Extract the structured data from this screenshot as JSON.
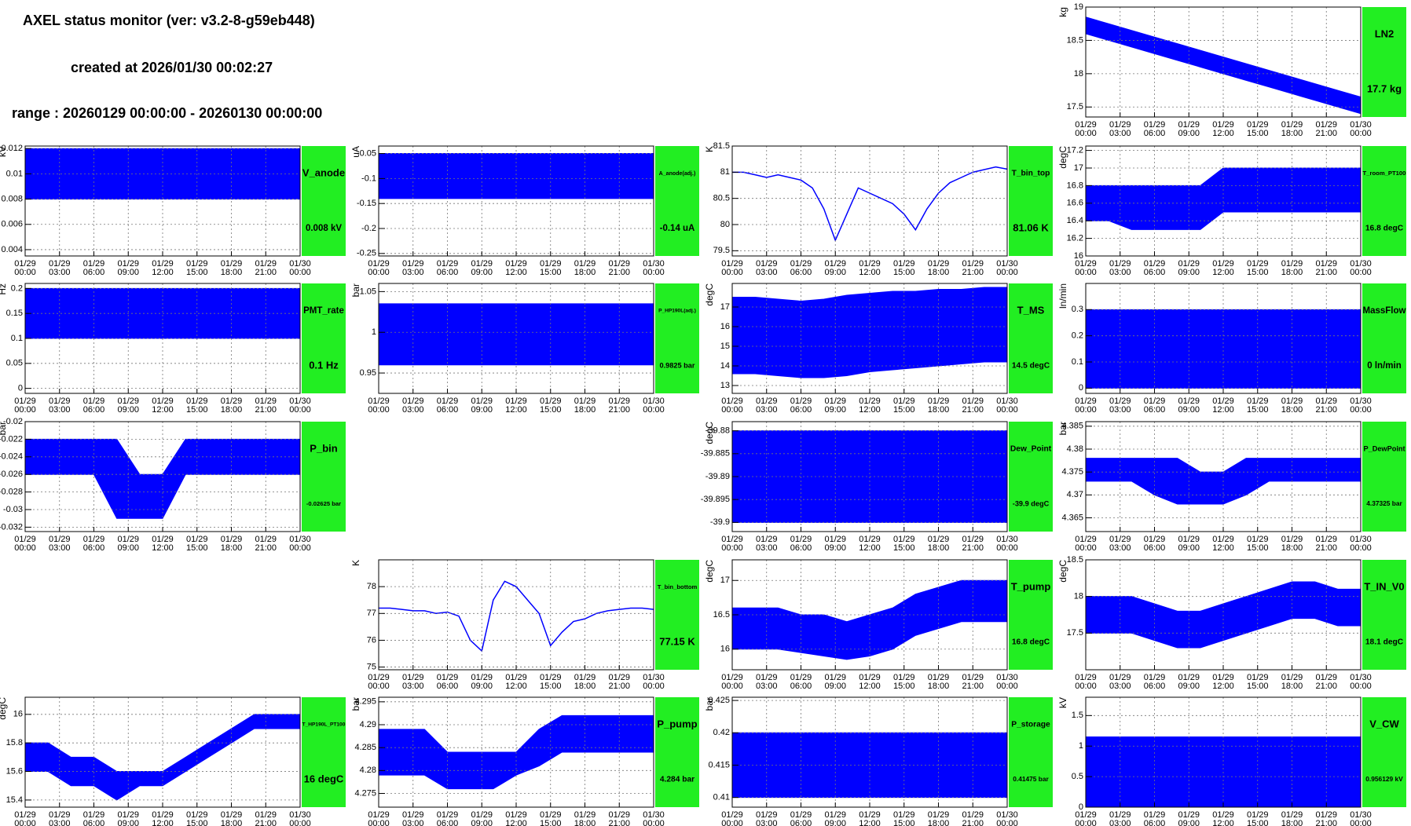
{
  "header": {
    "title": "AXEL status monitor (ver: v3.2-8-g59eb448)",
    "created": "created at 2026/01/30 00:02:27",
    "range": "range : 20260129 00:00:00 - 20260130 00:00:00"
  },
  "time_axis": {
    "xlim": [
      0,
      24
    ],
    "xticks": [
      {
        "value": 0,
        "label": [
          "01/29",
          "00:00"
        ]
      },
      {
        "value": 3,
        "label": [
          "01/29",
          "03:00"
        ]
      },
      {
        "value": 6,
        "label": [
          "01/29",
          "06:00"
        ]
      },
      {
        "value": 9,
        "label": [
          "01/29",
          "09:00"
        ]
      },
      {
        "value": 12,
        "label": [
          "01/29",
          "12:00"
        ]
      },
      {
        "value": 15,
        "label": [
          "01/29",
          "15:00"
        ]
      },
      {
        "value": 18,
        "label": [
          "01/29",
          "18:00"
        ]
      },
      {
        "value": 21,
        "label": [
          "01/29",
          "21:00"
        ]
      },
      {
        "value": 24,
        "label": [
          "01/30",
          "00:00"
        ]
      }
    ]
  },
  "chart_data": [
    {
      "type": "band",
      "name": "LN2",
      "value_label": "17.7 kg",
      "y_label": "kg",
      "color": "#0000ff",
      "grid": true,
      "ylim": [
        17.35,
        19.0
      ],
      "yticks": [
        17.5,
        18,
        18.5,
        19
      ],
      "x": [
        0,
        2,
        4,
        6,
        8,
        10,
        12,
        14,
        16,
        18,
        20,
        22,
        24
      ],
      "high": [
        18.85,
        18.75,
        18.65,
        18.55,
        18.45,
        18.35,
        18.25,
        18.15,
        18.05,
        17.95,
        17.85,
        17.75,
        17.65
      ],
      "low": [
        18.6,
        18.5,
        18.4,
        18.3,
        18.2,
        18.1,
        18.0,
        17.9,
        17.8,
        17.7,
        17.6,
        17.5,
        17.4
      ]
    },
    {
      "type": "band",
      "name": "V_anode",
      "value_label": "0.008 kV",
      "y_label": "kV",
      "color": "#0000ff",
      "grid": true,
      "ylim": [
        0.0035,
        0.0122
      ],
      "yticks": [
        0.004,
        0.006,
        0.008,
        0.01,
        0.012
      ],
      "x": [
        0,
        2,
        4,
        6,
        8,
        10,
        12,
        14,
        16,
        18,
        20,
        22,
        24
      ],
      "high": [
        0.012,
        0.012,
        0.012,
        0.012,
        0.012,
        0.012,
        0.012,
        0.012,
        0.012,
        0.012,
        0.012,
        0.012,
        0.012
      ],
      "low": [
        0.008,
        0.008,
        0.008,
        0.008,
        0.008,
        0.008,
        0.008,
        0.008,
        0.008,
        0.008,
        0.008,
        0.008,
        0.008
      ]
    },
    {
      "type": "band",
      "name": "A_anode(adj.)",
      "value_label": "-0.14 uA",
      "y_label": "uA",
      "color": "#0000ff",
      "grid": true,
      "ylim": [
        -0.255,
        -0.035
      ],
      "yticks": [
        -0.25,
        -0.2,
        -0.15,
        -0.1,
        -0.05
      ],
      "x": [
        0,
        2,
        4,
        6,
        8,
        10,
        12,
        14,
        16,
        18,
        20,
        22,
        24
      ],
      "high": [
        -0.05,
        -0.05,
        -0.05,
        -0.05,
        -0.05,
        -0.05,
        -0.05,
        -0.05,
        -0.05,
        -0.05,
        -0.05,
        -0.05,
        -0.05
      ],
      "low": [
        -0.14,
        -0.14,
        -0.14,
        -0.14,
        -0.14,
        -0.14,
        -0.14,
        -0.14,
        -0.14,
        -0.14,
        -0.14,
        -0.14,
        -0.14
      ]
    },
    {
      "type": "line",
      "name": "T_bin_top",
      "value_label": "81.06 K",
      "y_label": "K",
      "color": "#0000ff",
      "grid": true,
      "ylim": [
        79.4,
        81.5
      ],
      "yticks": [
        79.5,
        80,
        80.5,
        81,
        81.5
      ],
      "x": [
        0,
        1,
        2,
        3,
        4,
        5,
        6,
        7,
        8,
        9,
        10,
        11,
        12,
        13,
        14,
        15,
        16,
        17,
        18,
        19,
        20,
        21,
        22,
        23,
        24
      ],
      "values": [
        81.0,
        81.0,
        80.95,
        80.9,
        80.95,
        80.9,
        80.85,
        80.7,
        80.3,
        79.7,
        80.2,
        80.7,
        80.6,
        80.5,
        80.4,
        80.2,
        79.9,
        80.3,
        80.6,
        80.8,
        80.9,
        81.0,
        81.05,
        81.1,
        81.06
      ]
    },
    {
      "type": "band",
      "name": "T_room_PT100",
      "value_label": "16.8 degC",
      "y_label": "degC",
      "color": "#0000ff",
      "grid": true,
      "ylim": [
        16,
        17.25
      ],
      "yticks": [
        16,
        16.2,
        16.4,
        16.6,
        16.8,
        17,
        17.2
      ],
      "x": [
        0,
        2,
        4,
        6,
        8,
        10,
        12,
        14,
        16,
        18,
        20,
        22,
        24
      ],
      "high": [
        16.8,
        16.8,
        16.8,
        16.8,
        16.8,
        16.8,
        17.0,
        17.0,
        17.0,
        17.0,
        17.0,
        17.0,
        17.0
      ],
      "low": [
        16.4,
        16.4,
        16.3,
        16.3,
        16.3,
        16.3,
        16.5,
        16.5,
        16.5,
        16.5,
        16.5,
        16.5,
        16.5
      ]
    },
    {
      "type": "band",
      "name": "PMT_rate",
      "value_label": "0.1 Hz",
      "y_label": "Hz",
      "color": "#0000ff",
      "grid": true,
      "ylim": [
        -0.01,
        0.21
      ],
      "yticks": [
        0,
        0.05,
        0.1,
        0.15,
        0.2
      ],
      "x": [
        0,
        2,
        4,
        6,
        8,
        10,
        12,
        14,
        16,
        18,
        20,
        22,
        24
      ],
      "high": [
        0.2,
        0.2,
        0.2,
        0.2,
        0.2,
        0.2,
        0.2,
        0.2,
        0.2,
        0.2,
        0.2,
        0.2,
        0.2
      ],
      "low": [
        0.1,
        0.1,
        0.1,
        0.1,
        0.1,
        0.1,
        0.1,
        0.1,
        0.1,
        0.1,
        0.1,
        0.1,
        0.1
      ]
    },
    {
      "type": "band",
      "name": "P_HP190L(adj.)",
      "value_label": "0.9825 bar",
      "y_label": "bar",
      "color": "#0000ff",
      "grid": true,
      "ylim": [
        0.925,
        1.06
      ],
      "yticks": [
        0.95,
        1,
        1.05
      ],
      "x": [
        0,
        2,
        4,
        6,
        8,
        10,
        12,
        14,
        16,
        18,
        20,
        22,
        24
      ],
      "high": [
        1.035,
        1.035,
        1.035,
        1.035,
        1.035,
        1.035,
        1.035,
        1.035,
        1.035,
        1.035,
        1.035,
        1.035,
        1.035
      ],
      "low": [
        0.96,
        0.96,
        0.96,
        0.96,
        0.96,
        0.96,
        0.96,
        0.96,
        0.96,
        0.96,
        0.96,
        0.96,
        0.96
      ]
    },
    {
      "type": "band",
      "name": "T_MS",
      "value_label": "14.5 degC",
      "y_label": "degC",
      "color": "#0000ff",
      "grid": true,
      "ylim": [
        12.6,
        18.2
      ],
      "yticks": [
        13,
        14,
        15,
        16,
        17
      ],
      "x": [
        0,
        2,
        4,
        6,
        8,
        10,
        12,
        14,
        16,
        18,
        20,
        22,
        24
      ],
      "high": [
        17.5,
        17.5,
        17.4,
        17.3,
        17.4,
        17.6,
        17.7,
        17.8,
        17.8,
        17.9,
        17.9,
        18.0,
        18.0
      ],
      "low": [
        13.6,
        13.6,
        13.5,
        13.4,
        13.4,
        13.5,
        13.7,
        13.8,
        13.9,
        14.0,
        14.1,
        14.2,
        14.2
      ]
    },
    {
      "type": "band",
      "name": "MassFlow",
      "value_label": "0 ln/min",
      "y_label": "ln/min",
      "color": "#0000ff",
      "grid": true,
      "ylim": [
        -0.02,
        0.4
      ],
      "yticks": [
        0,
        0.1,
        0.2,
        0.3
      ],
      "x": [
        0,
        2,
        4,
        6,
        8,
        10,
        12,
        14,
        16,
        18,
        20,
        22,
        24
      ],
      "high": [
        0.3,
        0.3,
        0.3,
        0.3,
        0.3,
        0.3,
        0.3,
        0.3,
        0.3,
        0.3,
        0.3,
        0.3,
        0.3
      ],
      "low": [
        0,
        0,
        0,
        0,
        0,
        0,
        0,
        0,
        0,
        0,
        0,
        0,
        0
      ]
    },
    {
      "type": "band",
      "name": "P_bin",
      "value_label": "-0.02625 bar",
      "y_label": "bar",
      "color": "#0000ff",
      "grid": true,
      "ylim": [
        -0.0325,
        -0.02
      ],
      "yticks": [
        -0.032,
        -0.03,
        -0.028,
        -0.026,
        -0.024,
        -0.022,
        -0.02
      ],
      "x": [
        0,
        2,
        4,
        6,
        8,
        10,
        12,
        14,
        16,
        18,
        20,
        22,
        24
      ],
      "high": [
        -0.022,
        -0.022,
        -0.022,
        -0.022,
        -0.022,
        -0.026,
        -0.026,
        -0.022,
        -0.022,
        -0.022,
        -0.022,
        -0.022,
        -0.022
      ],
      "low": [
        -0.026,
        -0.026,
        -0.026,
        -0.026,
        -0.031,
        -0.031,
        -0.031,
        -0.026,
        -0.026,
        -0.026,
        -0.026,
        -0.026,
        -0.026
      ]
    },
    {
      "type": "band",
      "name": "Dew_Point",
      "value_label": "-39.9 degC",
      "y_label": "degC",
      "color": "#0000ff",
      "grid": true,
      "ylim": [
        -39.902,
        -39.878
      ],
      "yticks": [
        -39.9,
        -39.895,
        -39.89,
        -39.885,
        -39.88
      ],
      "x": [
        0,
        2,
        4,
        6,
        8,
        10,
        12,
        14,
        16,
        18,
        20,
        22,
        24
      ],
      "high": [
        -39.88,
        -39.88,
        -39.88,
        -39.88,
        -39.88,
        -39.88,
        -39.88,
        -39.88,
        -39.88,
        -39.88,
        -39.88,
        -39.88,
        -39.88
      ],
      "low": [
        -39.9,
        -39.9,
        -39.9,
        -39.9,
        -39.9,
        -39.9,
        -39.9,
        -39.9,
        -39.9,
        -39.9,
        -39.9,
        -39.9,
        -39.9
      ]
    },
    {
      "type": "band",
      "name": "P_DewPoint",
      "value_label": "4.37325 bar",
      "y_label": "bar",
      "color": "#0000ff",
      "grid": true,
      "ylim": [
        4.362,
        4.386
      ],
      "yticks": [
        4.365,
        4.37,
        4.375,
        4.38,
        4.385
      ],
      "x": [
        0,
        2,
        4,
        6,
        8,
        10,
        12,
        14,
        16,
        18,
        20,
        22,
        24
      ],
      "high": [
        4.378,
        4.378,
        4.378,
        4.378,
        4.378,
        4.375,
        4.375,
        4.378,
        4.378,
        4.378,
        4.378,
        4.378,
        4.378
      ],
      "low": [
        4.373,
        4.373,
        4.373,
        4.37,
        4.368,
        4.368,
        4.368,
        4.37,
        4.373,
        4.373,
        4.373,
        4.373,
        4.373
      ]
    },
    {
      "type": "line",
      "name": "T_bin_bottom",
      "value_label": "77.15 K",
      "y_label": "K",
      "color": "#0000ff",
      "grid": true,
      "ylim": [
        74.9,
        79
      ],
      "yticks": [
        75,
        76,
        77,
        78
      ],
      "x": [
        0,
        1,
        2,
        3,
        4,
        5,
        6,
        7,
        8,
        9,
        10,
        11,
        12,
        13,
        14,
        15,
        16,
        17,
        18,
        19,
        20,
        21,
        22,
        23,
        24
      ],
      "values": [
        77.2,
        77.2,
        77.15,
        77.1,
        77.1,
        77.0,
        77.05,
        76.9,
        76.0,
        75.6,
        77.5,
        78.2,
        78.0,
        77.5,
        77.0,
        75.8,
        76.3,
        76.7,
        76.8,
        77.0,
        77.1,
        77.15,
        77.2,
        77.2,
        77.15
      ]
    },
    {
      "type": "band",
      "name": "T_pump",
      "value_label": "16.8 degC",
      "y_label": "degC",
      "color": "#0000ff",
      "grid": true,
      "ylim": [
        15.7,
        17.3
      ],
      "yticks": [
        16,
        16.5,
        17
      ],
      "x": [
        0,
        2,
        4,
        6,
        8,
        10,
        12,
        14,
        16,
        18,
        20,
        22,
        24
      ],
      "high": [
        16.6,
        16.6,
        16.6,
        16.5,
        16.5,
        16.4,
        16.5,
        16.6,
        16.8,
        16.9,
        17.0,
        17.0,
        17.0
      ],
      "low": [
        16.0,
        16.0,
        16.0,
        15.95,
        15.9,
        15.85,
        15.9,
        16.0,
        16.2,
        16.3,
        16.4,
        16.4,
        16.4
      ]
    },
    {
      "type": "band",
      "name": "T_IN_V0",
      "value_label": "18.1 degC",
      "y_label": "degC",
      "color": "#0000ff",
      "grid": true,
      "ylim": [
        17,
        18.5
      ],
      "yticks": [
        17.5,
        18,
        18.5
      ],
      "x": [
        0,
        2,
        4,
        6,
        8,
        10,
        12,
        14,
        16,
        18,
        20,
        22,
        24
      ],
      "high": [
        18.0,
        18.0,
        18.0,
        17.9,
        17.8,
        17.8,
        17.9,
        18.0,
        18.1,
        18.2,
        18.2,
        18.1,
        18.1
      ],
      "low": [
        17.5,
        17.5,
        17.5,
        17.4,
        17.3,
        17.3,
        17.4,
        17.5,
        17.6,
        17.7,
        17.7,
        17.6,
        17.6
      ]
    },
    {
      "type": "band",
      "name": "T_HP190L_PT100",
      "value_label": "16 degC",
      "y_label": "degC",
      "color": "#0000ff",
      "grid": true,
      "ylim": [
        15.35,
        16.12
      ],
      "yticks": [
        15.4,
        15.6,
        15.8,
        16
      ],
      "x": [
        0,
        2,
        4,
        6,
        8,
        10,
        12,
        14,
        16,
        18,
        20,
        22,
        24
      ],
      "high": [
        15.8,
        15.8,
        15.7,
        15.7,
        15.6,
        15.6,
        15.6,
        15.7,
        15.8,
        15.9,
        16.0,
        16.0,
        16.0
      ],
      "low": [
        15.6,
        15.6,
        15.5,
        15.5,
        15.4,
        15.5,
        15.5,
        15.6,
        15.7,
        15.8,
        15.9,
        15.9,
        15.9
      ]
    },
    {
      "type": "band",
      "name": "P_pump",
      "value_label": "4.284 bar",
      "y_label": "bar",
      "color": "#0000ff",
      "grid": true,
      "ylim": [
        4.272,
        4.296
      ],
      "yticks": [
        4.275,
        4.28,
        4.285,
        4.29,
        4.295
      ],
      "x": [
        0,
        2,
        4,
        6,
        8,
        10,
        12,
        14,
        16,
        18,
        20,
        22,
        24
      ],
      "high": [
        4.289,
        4.289,
        4.289,
        4.284,
        4.284,
        4.284,
        4.284,
        4.289,
        4.292,
        4.292,
        4.292,
        4.292,
        4.292
      ],
      "low": [
        4.279,
        4.279,
        4.279,
        4.276,
        4.276,
        4.276,
        4.279,
        4.281,
        4.284,
        4.284,
        4.284,
        4.284,
        4.284
      ]
    },
    {
      "type": "band",
      "name": "P_storage",
      "value_label": "0.41475 bar",
      "y_label": "bar",
      "color": "#0000ff",
      "grid": true,
      "ylim": [
        0.4085,
        0.4255
      ],
      "yticks": [
        0.41,
        0.415,
        0.42,
        0.425
      ],
      "x": [
        0,
        2,
        4,
        6,
        8,
        10,
        12,
        14,
        16,
        18,
        20,
        22,
        24
      ],
      "high": [
        0.42,
        0.42,
        0.42,
        0.42,
        0.42,
        0.42,
        0.42,
        0.42,
        0.42,
        0.42,
        0.42,
        0.42,
        0.42
      ],
      "low": [
        0.41,
        0.41,
        0.41,
        0.41,
        0.41,
        0.41,
        0.41,
        0.41,
        0.41,
        0.41,
        0.41,
        0.41,
        0.41
      ]
    },
    {
      "type": "band",
      "name": "V_CW",
      "value_label": "0.956129 kV",
      "y_label": "kV",
      "color": "#0000ff",
      "grid": true,
      "ylim": [
        0,
        1.8
      ],
      "yticks": [
        0,
        0.5,
        1,
        1.5
      ],
      "x": [
        0,
        2,
        4,
        6,
        8,
        10,
        12,
        14,
        16,
        18,
        20,
        22,
        24
      ],
      "high": [
        1.15,
        1.15,
        1.15,
        1.15,
        1.15,
        1.15,
        1.15,
        1.15,
        1.15,
        1.15,
        1.15,
        1.15,
        1.15
      ],
      "low": [
        0,
        0,
        0,
        0,
        0,
        0,
        0,
        0,
        0,
        0,
        0,
        0,
        0
      ]
    }
  ]
}
